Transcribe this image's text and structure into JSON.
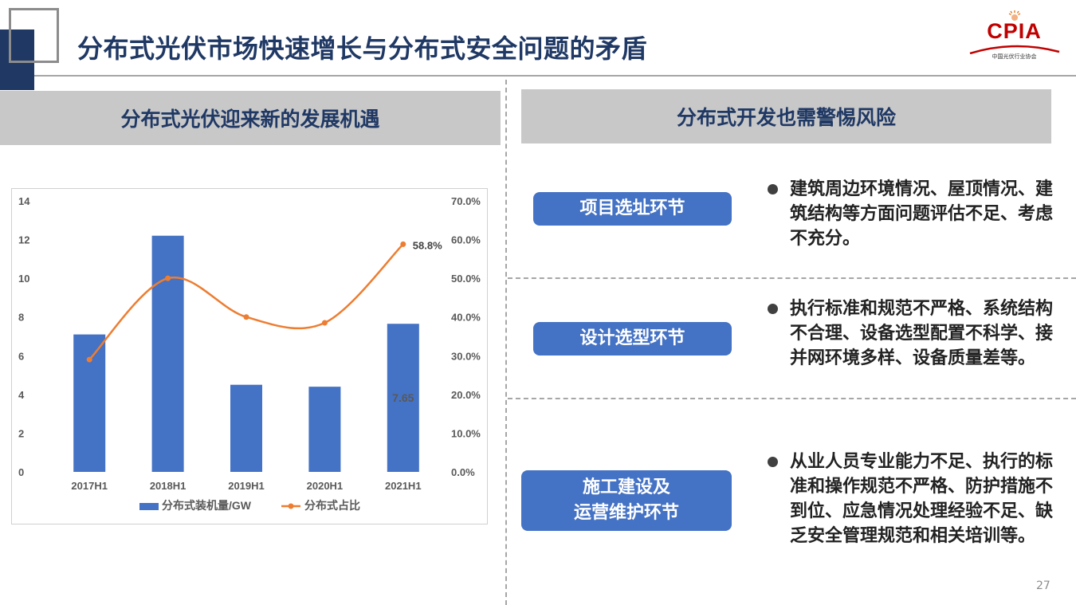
{
  "slide": {
    "title": "分布式光伏市场快速增长与分布式安全问题的矛盾",
    "page_number": "27"
  },
  "logo": {
    "text": "CPIA",
    "subtitle": "中国光伏行业协会",
    "icon": "sun-logo-icon"
  },
  "left_section": {
    "header": "分布式光伏迎来新的发展机遇"
  },
  "right_section": {
    "header": "分布式开发也需警惕风险",
    "items": [
      {
        "stage": "项目选址环节",
        "risk": "建筑周边环境情况、屋顶情况、建筑结构等方面问题评估不足、考虑不充分。"
      },
      {
        "stage": "设计选型环节",
        "risk": "执行标准和规范不严格、系统结构不合理、设备选型配置不科学、接并网环境多样、设备质量差等。"
      },
      {
        "stage_line1": "施工建设及",
        "stage_line2": "运营维护环节",
        "risk": "从业人员专业能力不足、执行的标准和操作规范不严格、防护措施不到位、应急情况处理经验不足、缺乏安全管理规范和相关培训等。"
      }
    ]
  },
  "chart_data": {
    "type": "bar",
    "categories": [
      "2017H1",
      "2018H1",
      "2019H1",
      "2020H1",
      "2021H1"
    ],
    "series": [
      {
        "name": "分布式装机量/GW",
        "type": "bar",
        "axis": "left",
        "values": [
          7.1,
          12.2,
          4.5,
          4.4,
          7.65
        ],
        "color": "#4472c4"
      },
      {
        "name": "分布式占比",
        "type": "line",
        "axis": "right",
        "values": [
          29.0,
          50.0,
          40.0,
          38.5,
          58.8
        ],
        "color": "#ed7d31"
      }
    ],
    "data_labels": [
      {
        "series": 0,
        "index": 4,
        "text": "7.65"
      },
      {
        "series": 1,
        "index": 4,
        "text": "58.8%"
      }
    ],
    "y_left": {
      "lim": [
        0,
        14
      ],
      "ticks": [
        "0",
        "2",
        "4",
        "6",
        "8",
        "10",
        "12",
        "14"
      ]
    },
    "y_right": {
      "lim": [
        0,
        70
      ],
      "ticks": [
        "0.0%",
        "10.0%",
        "20.0%",
        "30.0%",
        "40.0%",
        "50.0%",
        "60.0%",
        "70.0%"
      ]
    },
    "grid": false,
    "legend": "bottom"
  }
}
